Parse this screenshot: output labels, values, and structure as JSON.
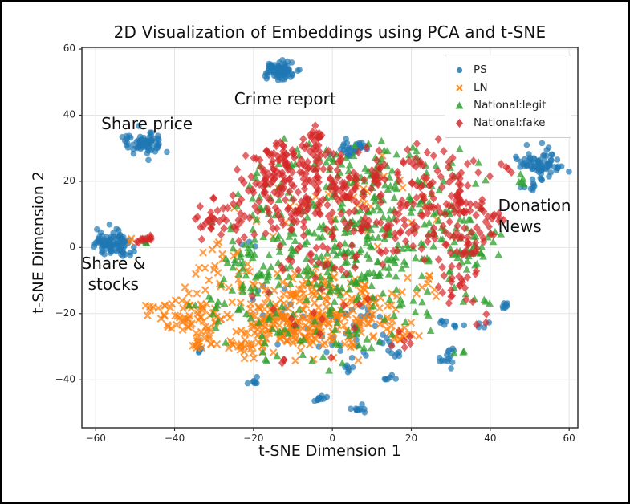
{
  "chart_data": {
    "type": "scatter",
    "title": "2D Visualization of Embeddings using PCA and t-SNE",
    "xlabel": "t-SNE Dimension 1",
    "ylabel": "t-SNE Dimension 2",
    "xlim": [
      -63.5,
      62.2
    ],
    "ylim": [
      -54.5,
      60.5
    ],
    "xticks": [
      -60,
      -40,
      -20,
      0,
      20,
      40,
      60
    ],
    "yticks": [
      -40,
      -20,
      0,
      20,
      40,
      60
    ],
    "grid": true,
    "seed": 7,
    "legend": {
      "position": "upper right",
      "entries": [
        {
          "label": "PS",
          "marker": "circle",
          "color": "#1f77b4"
        },
        {
          "label": "LN",
          "marker": "x",
          "color": "#ff7f0e"
        },
        {
          "label": "National:legit",
          "marker": "triangle",
          "color": "#2ca02c"
        },
        {
          "label": "National:fake",
          "marker": "diamond",
          "color": "#d62728"
        }
      ]
    },
    "annotations": [
      {
        "lines": [
          "Crime report"
        ],
        "x": -12,
        "y": 45,
        "align": "center"
      },
      {
        "lines": [
          "Share price"
        ],
        "x": -47,
        "y": 37.5,
        "align": "center"
      },
      {
        "lines": [
          "Share &",
          "stocks"
        ],
        "x": -55.5,
        "y": -8,
        "align": "center"
      },
      {
        "lines": [
          "Donation",
          "News"
        ],
        "x": 42,
        "y": 9.6,
        "align": "left"
      }
    ],
    "series_note": "t-SNE point clouds; each cluster is [center_x, center_y, sigma_x, sigma_y, n_points] read from the figure",
    "series": [
      {
        "name": "PS",
        "marker": "circle",
        "color": "#1f77b4",
        "alpha": 0.7,
        "clusters": [
          [
            -13.5,
            53.5,
            1.7,
            1.3,
            90
          ],
          [
            -47,
            31.5,
            2.4,
            1.6,
            75
          ],
          [
            -56,
            1.5,
            2.2,
            1.7,
            85
          ],
          [
            -52.5,
            -1.5,
            1.0,
            0.8,
            10
          ],
          [
            52,
            25.5,
            2.5,
            2.2,
            65
          ],
          [
            56.5,
            24,
            1.2,
            1.5,
            8
          ],
          [
            50,
            19,
            1.2,
            1.3,
            10
          ],
          [
            5.5,
            30,
            1.7,
            1.4,
            30
          ],
          [
            -20,
            -40.5,
            0.8,
            0.6,
            7
          ],
          [
            -3,
            -45.7,
            1.0,
            0.7,
            9
          ],
          [
            6,
            -48.5,
            1.0,
            0.8,
            10
          ],
          [
            15,
            -39.7,
            0.8,
            0.6,
            6
          ],
          [
            16.5,
            -32.3,
            0.9,
            0.6,
            6
          ],
          [
            28.5,
            -34.5,
            1.1,
            0.9,
            9
          ],
          [
            27.5,
            -23,
            0.8,
            0.6,
            5
          ],
          [
            31.5,
            -23.5,
            0.7,
            0.5,
            4
          ],
          [
            43.5,
            -18,
            1.0,
            0.9,
            7
          ],
          [
            38,
            -23.5,
            0.7,
            0.5,
            4
          ],
          [
            30.5,
            -31.5,
            0.9,
            0.6,
            5
          ],
          [
            -34.5,
            -30.5,
            0.7,
            0.9,
            5
          ],
          [
            3.5,
            -36.5,
            1.1,
            0.7,
            6
          ],
          [
            12,
            -28.5,
            1.0,
            0.7,
            5
          ],
          [
            -2,
            -25,
            6,
            4,
            30
          ],
          [
            8,
            -20,
            5,
            4,
            14
          ],
          [
            -14,
            -15,
            5,
            4,
            8
          ],
          [
            -19,
            2,
            2,
            2,
            3
          ]
        ]
      },
      {
        "name": "LN",
        "marker": "x",
        "color": "#ff7f0e",
        "alpha": 0.75,
        "clusters": [
          [
            -36,
            -20,
            3.5,
            2.8,
            55
          ],
          [
            -32,
            -28,
            2.2,
            1.6,
            18
          ],
          [
            -21.5,
            -29,
            2.2,
            1.8,
            28
          ],
          [
            -44.5,
            -19,
            1.6,
            1.6,
            10
          ],
          [
            -10,
            -24,
            6,
            3.5,
            110
          ],
          [
            2,
            -22,
            6,
            4,
            75
          ],
          [
            -5,
            -13,
            7,
            4,
            55
          ],
          [
            10,
            -15,
            5,
            3.5,
            35
          ],
          [
            -25,
            -8,
            4,
            4,
            22
          ],
          [
            -16,
            -20,
            4,
            3,
            35
          ],
          [
            18,
            -25,
            3,
            2.5,
            18
          ],
          [
            -5,
            8,
            8,
            6,
            20
          ],
          [
            12,
            18,
            6,
            5,
            10
          ],
          [
            -30,
            -2,
            3,
            3,
            10
          ],
          [
            25,
            -13,
            3,
            3,
            8
          ],
          [
            22,
            12,
            4,
            4,
            6
          ],
          [
            -51,
            2,
            0.5,
            0.4,
            2
          ]
        ]
      },
      {
        "name": "National:legit",
        "marker": "triangle",
        "color": "#2ca02c",
        "alpha": 0.75,
        "clusters": [
          [
            -8,
            -5,
            9,
            6,
            75
          ],
          [
            5,
            -8,
            8,
            6,
            65
          ],
          [
            15,
            2,
            8,
            6,
            55
          ],
          [
            -20,
            -5,
            5,
            5,
            28
          ],
          [
            -2,
            10,
            8,
            6,
            45
          ],
          [
            15,
            15,
            7,
            5,
            38
          ],
          [
            30,
            8,
            6,
            6,
            38
          ],
          [
            35,
            0,
            4,
            4,
            25
          ],
          [
            -28,
            -15,
            4,
            4,
            18
          ],
          [
            -15,
            -25,
            5,
            4,
            22
          ],
          [
            3,
            -28,
            6,
            4,
            22
          ],
          [
            20,
            -18,
            4,
            4,
            14
          ],
          [
            25,
            25,
            5,
            4,
            20
          ],
          [
            5,
            25,
            6,
            4,
            20
          ],
          [
            -18,
            12,
            5,
            5,
            22
          ],
          [
            35,
            -15,
            3,
            4,
            8
          ],
          [
            48,
            19.5,
            1.2,
            1.8,
            5
          ],
          [
            32,
            -32,
            1,
            1,
            3
          ],
          [
            -47.5,
            2,
            0.9,
            0.6,
            4
          ],
          [
            10,
            30,
            4,
            2.5,
            10
          ],
          [
            -10,
            28,
            5,
            3,
            12
          ]
        ]
      },
      {
        "name": "National:fake",
        "marker": "diamond",
        "color": "#d62728",
        "alpha": 0.7,
        "clusters": [
          [
            -4,
            33,
            1.6,
            1.2,
            16
          ],
          [
            -8,
            23,
            6,
            4.5,
            85
          ],
          [
            -18,
            20,
            4,
            4,
            38
          ],
          [
            3,
            18,
            6,
            4.5,
            55
          ],
          [
            -10,
            12,
            5,
            4,
            45
          ],
          [
            -25,
            8,
            4,
            4,
            28
          ],
          [
            -31,
            9,
            2,
            1.5,
            14
          ],
          [
            14,
            22,
            5,
            4,
            32
          ],
          [
            25,
            15,
            5,
            4,
            32
          ],
          [
            24,
            27,
            3,
            2,
            12
          ],
          [
            34,
            12,
            2.5,
            2,
            24
          ],
          [
            20,
            5,
            6,
            5,
            38
          ],
          [
            34,
            0,
            3.5,
            3,
            32
          ],
          [
            40,
            8,
            3,
            3,
            18
          ],
          [
            5,
            5,
            6,
            5,
            28
          ],
          [
            -5,
            -3,
            6,
            4,
            22
          ],
          [
            30,
            -8,
            3,
            3,
            14
          ],
          [
            32,
            -15,
            2,
            2,
            8
          ],
          [
            -47.5,
            2.3,
            1.2,
            0.8,
            12
          ],
          [
            -12,
            -34,
            0.8,
            0.6,
            3
          ],
          [
            0,
            -20,
            8,
            5,
            14
          ],
          [
            17,
            -27,
            2,
            2,
            6
          ],
          [
            33,
            24,
            4,
            3,
            14
          ],
          [
            -12,
            29,
            4,
            2,
            14
          ],
          [
            38,
            -22.5,
            1,
            1,
            3
          ],
          [
            45,
            25,
            1.5,
            2,
            4
          ]
        ]
      }
    ]
  }
}
